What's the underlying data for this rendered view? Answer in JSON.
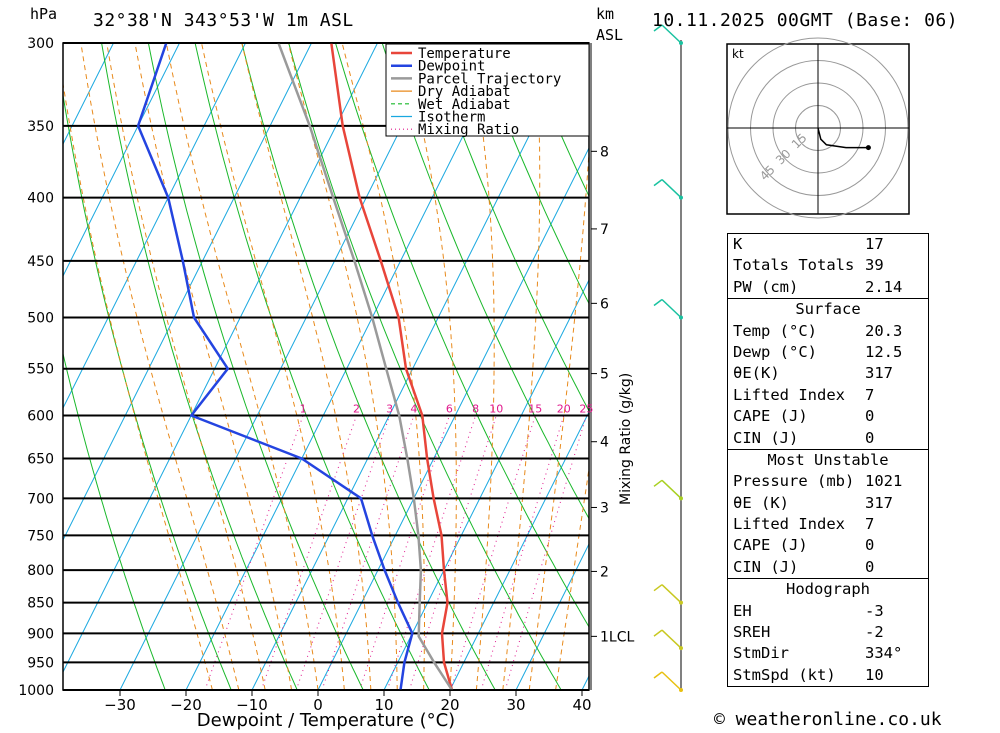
{
  "header": {
    "location": "32°38'N 343°53'W 1m ASL",
    "datetime": "10.11.2025 00GMT (Base: 06)",
    "p_unit": "hPa",
    "km_unit": "km",
    "asl_unit": "ASL"
  },
  "chart_data": {
    "type": "skew-t",
    "title": "32°38'N 343°53'W 1m ASL",
    "xlabel": "Dewpoint / Temperature (°C)",
    "ylabel": "hPa",
    "xlim": [
      -40,
      40
    ],
    "ylim": [
      1000,
      300
    ],
    "x_ticks": [
      -30,
      -20,
      -10,
      0,
      10,
      20,
      30,
      40
    ],
    "pressure_levels": [
      300,
      350,
      400,
      450,
      500,
      550,
      600,
      650,
      700,
      750,
      800,
      850,
      900,
      950,
      1000
    ],
    "height_km_labels": [
      {
        "label": "8",
        "p": 367
      },
      {
        "label": "7",
        "p": 424
      },
      {
        "label": "6",
        "p": 487
      },
      {
        "label": "5",
        "p": 555
      },
      {
        "label": "4",
        "p": 630
      },
      {
        "label": "3",
        "p": 712
      },
      {
        "label": "2",
        "p": 802
      },
      {
        "label": "1LCL",
        "p": 905
      }
    ],
    "legend": [
      "Temperature",
      "Dewpoint",
      "Parcel Trajectory",
      "Dry Adiabat",
      "Wet Adiabat",
      "Isotherm",
      "Mixing Ratio"
    ],
    "legend_colors": [
      "#e8453a",
      "#2444e0",
      "#9a9a9a",
      "#e88a1c",
      "#19b82a",
      "#19a8e0",
      "#e0188c"
    ],
    "mixing_ratio_axis_label": "Mixing Ratio (g/kg)",
    "mixing_ratio_labels": [
      "1",
      "2",
      "3",
      "4",
      "6",
      "8",
      "10",
      "15",
      "20",
      "25"
    ],
    "mixing_ratio_values": [
      1,
      2,
      3,
      4,
      6,
      8,
      10,
      15,
      20,
      25
    ],
    "series": [
      {
        "name": "Temperature",
        "color": "#e8453a",
        "points": [
          [
            1000,
            20.3
          ],
          [
            950,
            17
          ],
          [
            900,
            14.5
          ],
          [
            850,
            13
          ],
          [
            800,
            10
          ],
          [
            750,
            7
          ],
          [
            700,
            3
          ],
          [
            650,
            -1
          ],
          [
            600,
            -5
          ],
          [
            550,
            -11
          ],
          [
            500,
            -16
          ],
          [
            450,
            -23
          ],
          [
            400,
            -31
          ],
          [
            350,
            -39
          ],
          [
            300,
            -47
          ]
        ]
      },
      {
        "name": "Dewpoint",
        "color": "#2444e0",
        "points": [
          [
            1000,
            12.5
          ],
          [
            950,
            11
          ],
          [
            900,
            10
          ],
          [
            850,
            5.5
          ],
          [
            800,
            1
          ],
          [
            750,
            -3.5
          ],
          [
            700,
            -8
          ],
          [
            650,
            -20
          ],
          [
            600,
            -40
          ],
          [
            550,
            -38
          ],
          [
            500,
            -47
          ],
          [
            450,
            -53
          ],
          [
            400,
            -60
          ],
          [
            350,
            -70
          ],
          [
            300,
            -72
          ]
        ]
      },
      {
        "name": "Parcel Trajectory",
        "color": "#9a9a9a",
        "points": [
          [
            1000,
            20.3
          ],
          [
            950,
            15.5
          ],
          [
            905,
            11.2
          ],
          [
            850,
            8.8
          ],
          [
            800,
            6.5
          ],
          [
            750,
            3.5
          ],
          [
            700,
            0
          ],
          [
            650,
            -4
          ],
          [
            600,
            -8.5
          ],
          [
            550,
            -14
          ],
          [
            500,
            -20
          ],
          [
            450,
            -27
          ],
          [
            400,
            -35
          ],
          [
            350,
            -44
          ],
          [
            300,
            -55
          ]
        ]
      }
    ]
  },
  "hodograph": {
    "unit": "kt",
    "ring_labels": [
      "15",
      "30",
      "45"
    ],
    "points": [
      [
        0,
        0
      ],
      [
        2,
        -8
      ],
      [
        6,
        -12
      ],
      [
        20,
        -14
      ],
      [
        36,
        -14
      ]
    ]
  },
  "wind_barbs": [
    {
      "p": 300,
      "color": "#19c2a0"
    },
    {
      "p": 400,
      "color": "#19c2a0"
    },
    {
      "p": 500,
      "color": "#19c2a0"
    },
    {
      "p": 700,
      "color": "#a8d020"
    },
    {
      "p": 850,
      "color": "#c8c820"
    },
    {
      "p": 925,
      "color": "#c8c820"
    },
    {
      "p": 1000,
      "color": "#e8c010"
    }
  ],
  "indices": {
    "k_label": "K",
    "k_value": "17",
    "tt_label": "Totals Totals",
    "tt_value": "39",
    "pw_label": "PW (cm)",
    "pw_value": "2.14"
  },
  "surface": {
    "title": "Surface",
    "temp_label": "Temp (°C)",
    "temp_value": "20.3",
    "dewp_label": "Dewp (°C)",
    "dewp_value": "12.5",
    "theta_label": "θE(K)",
    "theta_value": "317",
    "li_label": "Lifted Index",
    "li_value": "7",
    "cape_label": "CAPE (J)",
    "cape_value": "0",
    "cin_label": "CIN (J)",
    "cin_value": "0"
  },
  "most_unstable": {
    "title": "Most Unstable",
    "pressure_label": "Pressure (mb)",
    "pressure_value": "1021",
    "theta_label": "θE (K)",
    "theta_value": "317",
    "li_label": "Lifted Index",
    "li_value": "7",
    "cape_label": "CAPE (J)",
    "cape_value": "0",
    "cin_label": "CIN (J)",
    "cin_value": "0"
  },
  "hodograph_params": {
    "title": "Hodograph",
    "eh_label": "EH",
    "eh_value": "-3",
    "sreh_label": "SREH",
    "sreh_value": "-2",
    "stmdir_label": "StmDir",
    "stmdir_value": "334°",
    "stmspd_label": "StmSpd (kt)",
    "stmspd_value": "10"
  },
  "copyright": "© weatheronline.co.uk"
}
